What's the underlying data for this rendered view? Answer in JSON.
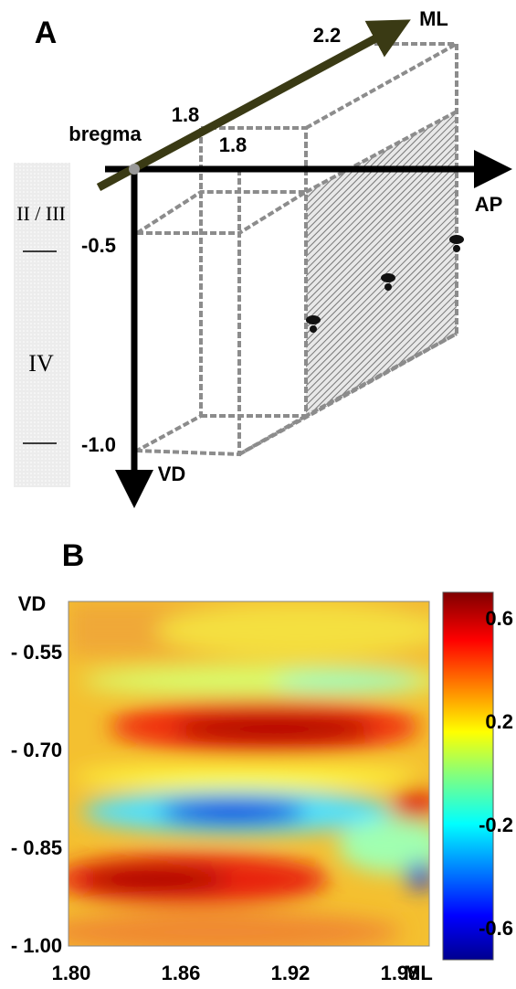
{
  "panel_a": {
    "label": "A",
    "origin": "bregma",
    "axes": {
      "ml": "ML",
      "ap": "AP",
      "vd": "VD"
    },
    "ml_marks": [
      "2.2",
      "1.8"
    ],
    "ap_mark": "1.8",
    "vd_marks": [
      "-0.5",
      "-1.0"
    ],
    "layers": [
      "II / III",
      "IV"
    ]
  },
  "panel_b": {
    "label": "B",
    "y_axis_label": "VD",
    "x_axis_label": "ML",
    "y_ticks": [
      "- 0.55",
      "- 0.70",
      "- 0.85",
      "- 1.00"
    ],
    "x_ticks": [
      "1.80",
      "1.86",
      "1.92",
      "1.98"
    ],
    "colorbar_ticks": [
      "0.6",
      "0.2",
      "-0.2",
      "-0.6"
    ]
  }
}
